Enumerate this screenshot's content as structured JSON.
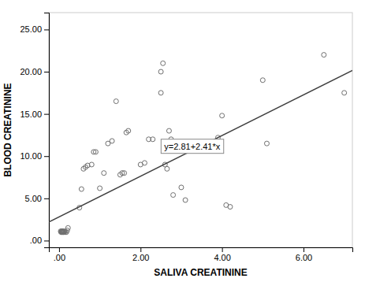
{
  "chart_data": {
    "type": "scatter",
    "xlabel": "SALIVA CREATININE",
    "ylabel": "BLOOD CREATININE",
    "xlim": [
      -0.25,
      7.2
    ],
    "ylim": [
      -0.8,
      27
    ],
    "xticks": [
      {
        "value": 0.0,
        "label": ".00"
      },
      {
        "value": 2.0,
        "label": "2.00"
      },
      {
        "value": 4.0,
        "label": "4.00"
      },
      {
        "value": 6.0,
        "label": "6.00"
      }
    ],
    "yticks": [
      {
        "value": 0.0,
        "label": ".00"
      },
      {
        "value": 5.0,
        "label": "5.00"
      },
      {
        "value": 10.0,
        "label": "10.00"
      },
      {
        "value": 15.0,
        "label": "15.00"
      },
      {
        "value": 20.0,
        "label": "20.00"
      },
      {
        "value": 25.0,
        "label": "25.00"
      }
    ],
    "grid": false,
    "series": [
      {
        "type": "scatter",
        "color": "#707070",
        "x": [
          0.04,
          0.05,
          0.06,
          0.07,
          0.07,
          0.08,
          0.08,
          0.09,
          0.09,
          0.1,
          0.1,
          0.11,
          0.12,
          0.13,
          0.15,
          0.18,
          0.2,
          0.22,
          0.5,
          0.55,
          0.6,
          0.65,
          0.7,
          0.8,
          0.85,
          0.9,
          1.0,
          1.1,
          1.2,
          1.3,
          1.4,
          1.5,
          1.55,
          1.6,
          1.65,
          1.7,
          2.0,
          2.1,
          2.2,
          2.3,
          2.5,
          2.55,
          2.6,
          2.65,
          2.5,
          2.7,
          2.75,
          2.8,
          3.0,
          3.1,
          3.9,
          4.0,
          4.1,
          4.2,
          5.0,
          5.1,
          6.5,
          7.0
        ],
        "values": [
          1.1,
          1.0,
          1.1,
          1.0,
          1.05,
          1.1,
          1.05,
          1.0,
          1.1,
          1.05,
          1.0,
          1.0,
          1.1,
          1.05,
          1.0,
          1.0,
          1.2,
          1.5,
          3.9,
          6.1,
          8.5,
          8.7,
          8.9,
          9.0,
          10.5,
          10.5,
          6.2,
          8.0,
          11.5,
          11.8,
          16.5,
          7.8,
          8.0,
          8.0,
          12.8,
          13.0,
          9.0,
          9.2,
          12.0,
          12.0,
          17.5,
          21.0,
          9.0,
          8.5,
          20.0,
          13.0,
          12.0,
          5.4,
          6.3,
          4.8,
          12.2,
          14.8,
          4.2,
          4.0,
          19.0,
          11.5,
          22.0,
          17.5
        ]
      },
      {
        "type": "line",
        "color": "#404040",
        "x": [
          -0.25,
          7.2
        ],
        "values": [
          2.2075,
          20.162
        ]
      }
    ],
    "annotations": [
      "y=2.81+2.41*x"
    ]
  }
}
